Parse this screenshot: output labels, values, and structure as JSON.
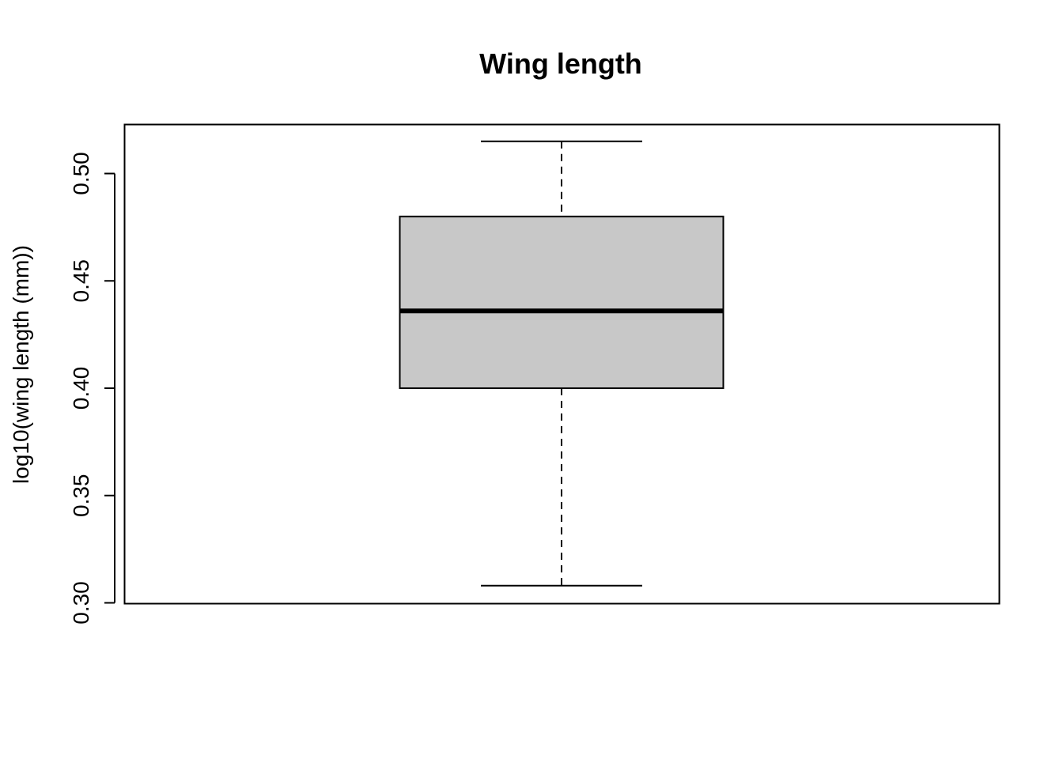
{
  "chart_data": {
    "type": "box",
    "title": "Wing length",
    "xlabel": "",
    "ylabel": "log10(wing length (mm))",
    "ylim": [
      0.3,
      0.52
    ],
    "yticks": [
      0.3,
      0.35,
      0.4,
      0.45,
      0.5
    ],
    "ytick_labels": [
      "0.30",
      "0.35",
      "0.40",
      "0.45",
      "0.50"
    ],
    "grid": false,
    "boxes": [
      {
        "whisker_low": 0.308,
        "q1": 0.4,
        "median": 0.436,
        "q3": 0.48,
        "whisker_high": 0.515
      }
    ],
    "colors": {
      "box_fill": "#c8c8c8",
      "stroke": "#000000"
    }
  }
}
